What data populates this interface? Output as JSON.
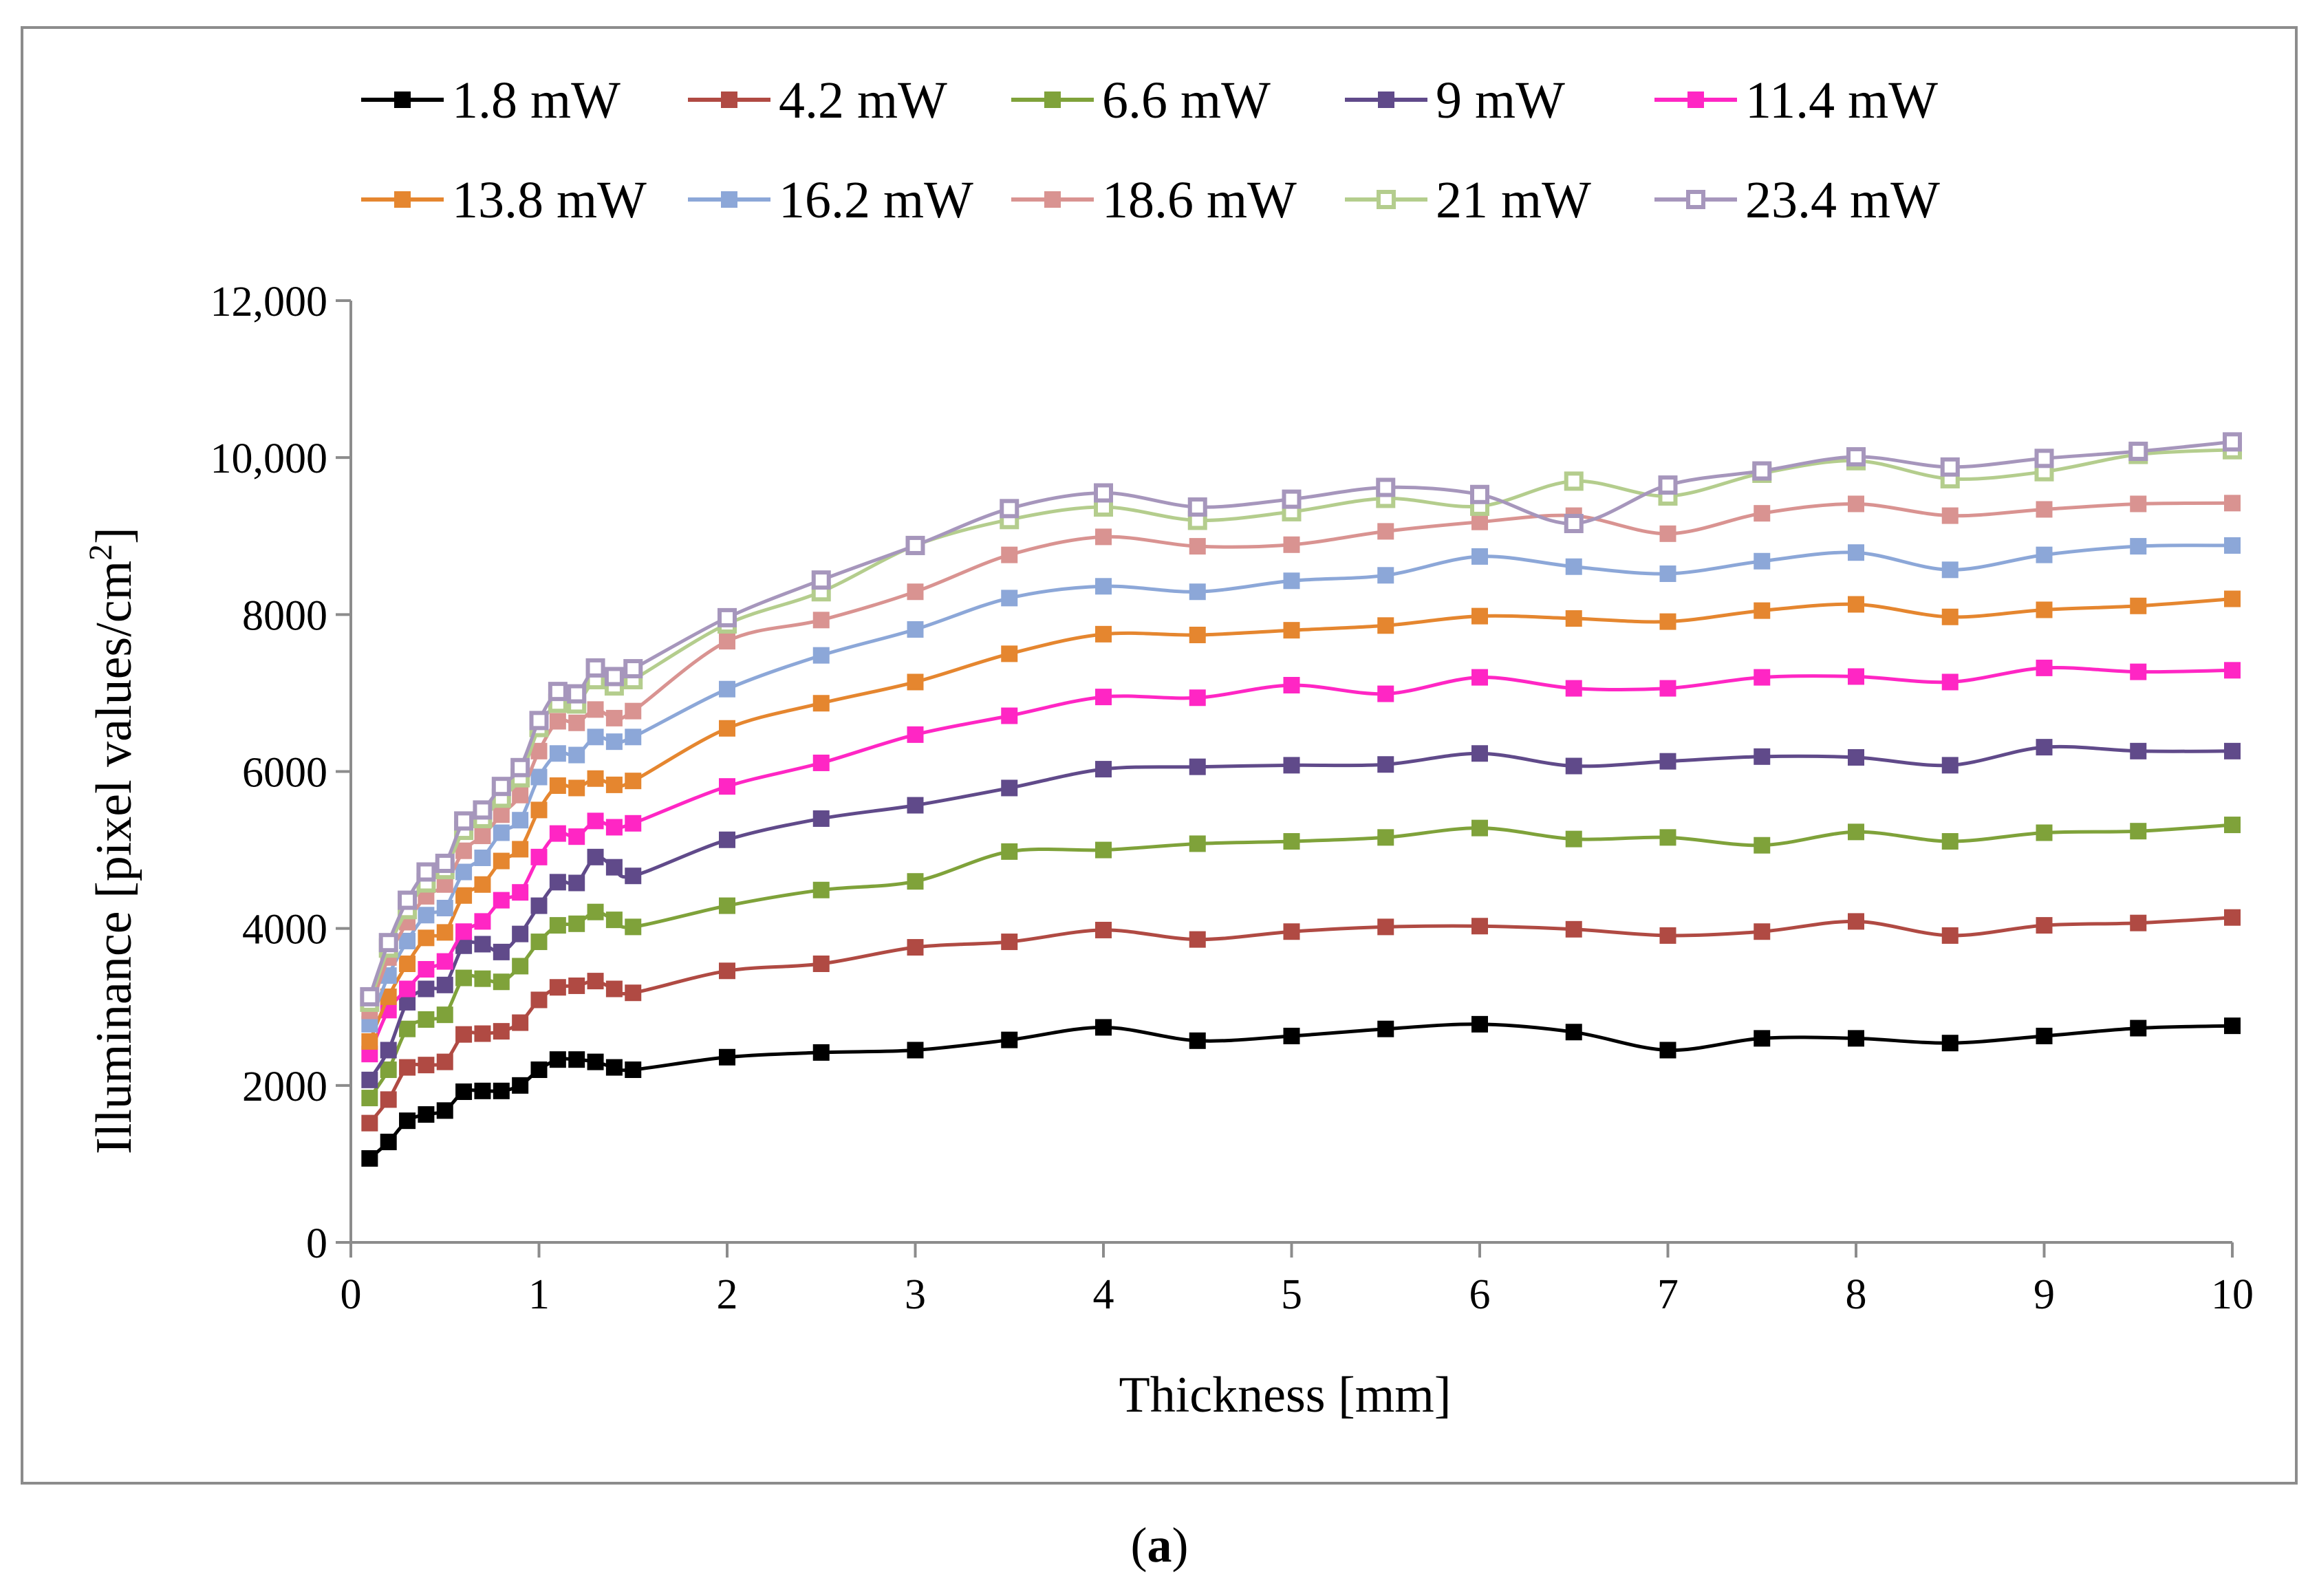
{
  "caption": {
    "open": "(",
    "letter": "a",
    "close": ")"
  },
  "chart_data": {
    "type": "line",
    "title": "",
    "xlabel": "Thickness [mm]",
    "ylabel_main": "Illuminance  [pixel values/cm",
    "ylabel_sup": "2",
    "ylabel_end": "]",
    "xlim": [
      0,
      10
    ],
    "ylim": [
      0,
      12000
    ],
    "x_ticks": [
      0,
      1,
      2,
      3,
      4,
      5,
      6,
      7,
      8,
      9,
      10
    ],
    "x_tick_labels": [
      "0",
      "1",
      "2",
      "3",
      "4",
      "5",
      "6",
      "7",
      "8",
      "9",
      "10"
    ],
    "y_ticks": [
      0,
      2000,
      4000,
      6000,
      8000,
      10000,
      12000
    ],
    "y_tick_labels": [
      "0",
      "2000",
      "4000",
      "6000",
      "8000",
      "10,000",
      "12,000"
    ],
    "legend_position": "top",
    "x": [
      0.1,
      0.2,
      0.3,
      0.4,
      0.5,
      0.6,
      0.7,
      0.8,
      0.9,
      1.0,
      1.1,
      1.2,
      1.3,
      1.4,
      1.5,
      2,
      2.5,
      3,
      3.5,
      4,
      4.5,
      5,
      5.5,
      6,
      6.5,
      7,
      7.5,
      8,
      8.5,
      9,
      9.5,
      10
    ],
    "series": [
      {
        "name": "1.8 mW",
        "color": "#000000",
        "marker": "filled",
        "values": [
          1070,
          1280,
          1550,
          1630,
          1680,
          1920,
          1930,
          1930,
          2000,
          2200,
          2330,
          2330,
          2300,
          2230,
          2200,
          2360,
          2420,
          2450,
          2580,
          2740,
          2570,
          2630,
          2720,
          2780,
          2680,
          2450,
          2600,
          2600,
          2540,
          2630,
          2730,
          2760
        ]
      },
      {
        "name": "4.2 mW",
        "color": "#b04a43",
        "marker": "filled",
        "values": [
          1520,
          1820,
          2230,
          2260,
          2300,
          2650,
          2660,
          2690,
          2800,
          3090,
          3250,
          3270,
          3330,
          3230,
          3180,
          3460,
          3550,
          3760,
          3830,
          3980,
          3860,
          3960,
          4020,
          4030,
          3990,
          3910,
          3960,
          4090,
          3910,
          4040,
          4070,
          4140
        ]
      },
      {
        "name": "6.6 mW",
        "color": "#7fa23a",
        "marker": "filled",
        "values": [
          1840,
          2200,
          2720,
          2840,
          2900,
          3370,
          3360,
          3320,
          3520,
          3830,
          4040,
          4060,
          4210,
          4110,
          4020,
          4290,
          4490,
          4600,
          4980,
          5000,
          5080,
          5110,
          5160,
          5280,
          5140,
          5160,
          5060,
          5230,
          5110,
          5220,
          5240,
          5320
        ]
      },
      {
        "name": "9 mW",
        "color": "#604a8a",
        "marker": "filled",
        "values": [
          2070,
          2450,
          3060,
          3230,
          3280,
          3780,
          3800,
          3700,
          3930,
          4290,
          4590,
          4580,
          4910,
          4780,
          4670,
          5130,
          5400,
          5570,
          5790,
          6030,
          6060,
          6080,
          6090,
          6230,
          6070,
          6130,
          6190,
          6180,
          6080,
          6310,
          6260,
          6260
        ]
      },
      {
        "name": "11.4 mW",
        "color": "#ff26c4",
        "marker": "filled",
        "values": [
          2400,
          2960,
          3230,
          3480,
          3580,
          3960,
          4090,
          4360,
          4460,
          4910,
          5210,
          5170,
          5370,
          5290,
          5340,
          5810,
          6110,
          6470,
          6710,
          6950,
          6940,
          7100,
          6990,
          7200,
          7060,
          7060,
          7200,
          7210,
          7140,
          7320,
          7270,
          7290
        ]
      },
      {
        "name": "13.8 mW",
        "color": "#e5862f",
        "marker": "filled",
        "values": [
          2560,
          3130,
          3550,
          3880,
          3950,
          4420,
          4560,
          4860,
          5010,
          5510,
          5820,
          5790,
          5910,
          5830,
          5880,
          6550,
          6870,
          7140,
          7500,
          7750,
          7740,
          7800,
          7860,
          7980,
          7950,
          7910,
          8050,
          8130,
          7970,
          8060,
          8110,
          8200
        ]
      },
      {
        "name": "16.2 mW",
        "color": "#8ca7d8",
        "marker": "filled",
        "values": [
          2780,
          3400,
          3840,
          4170,
          4260,
          4720,
          4900,
          5220,
          5380,
          5930,
          6230,
          6210,
          6440,
          6380,
          6440,
          7050,
          7480,
          7810,
          8210,
          8360,
          8290,
          8430,
          8500,
          8740,
          8610,
          8520,
          8680,
          8790,
          8570,
          8760,
          8870,
          8880
        ]
      },
      {
        "name": "18.6 mW",
        "color": "#d99391",
        "marker": "filled",
        "values": [
          2950,
          3630,
          4080,
          4410,
          4560,
          4990,
          5180,
          5450,
          5700,
          6260,
          6640,
          6620,
          6790,
          6680,
          6770,
          7660,
          7930,
          8290,
          8760,
          8990,
          8870,
          8890,
          9060,
          9180,
          9260,
          9030,
          9290,
          9410,
          9260,
          9340,
          9410,
          9420
        ]
      },
      {
        "name": "21 mW",
        "color": "#b4cd8d",
        "marker": "open",
        "values": [
          3060,
          3750,
          4240,
          4580,
          4750,
          5250,
          5400,
          5660,
          5920,
          6560,
          6870,
          6860,
          7170,
          7090,
          7170,
          7880,
          8290,
          8880,
          9210,
          9370,
          9200,
          9310,
          9480,
          9380,
          9700,
          9510,
          9800,
          9960,
          9730,
          9820,
          10040,
          10100
        ]
      },
      {
        "name": "23.4 mW",
        "color": "#a696bc",
        "marker": "open",
        "values": [
          3130,
          3820,
          4360,
          4720,
          4830,
          5370,
          5510,
          5810,
          6050,
          6650,
          7020,
          6990,
          7320,
          7210,
          7310,
          7960,
          8440,
          8880,
          9350,
          9550,
          9370,
          9470,
          9620,
          9530,
          9160,
          9650,
          9830,
          10010,
          9880,
          9990,
          10080,
          10200
        ]
      }
    ]
  }
}
